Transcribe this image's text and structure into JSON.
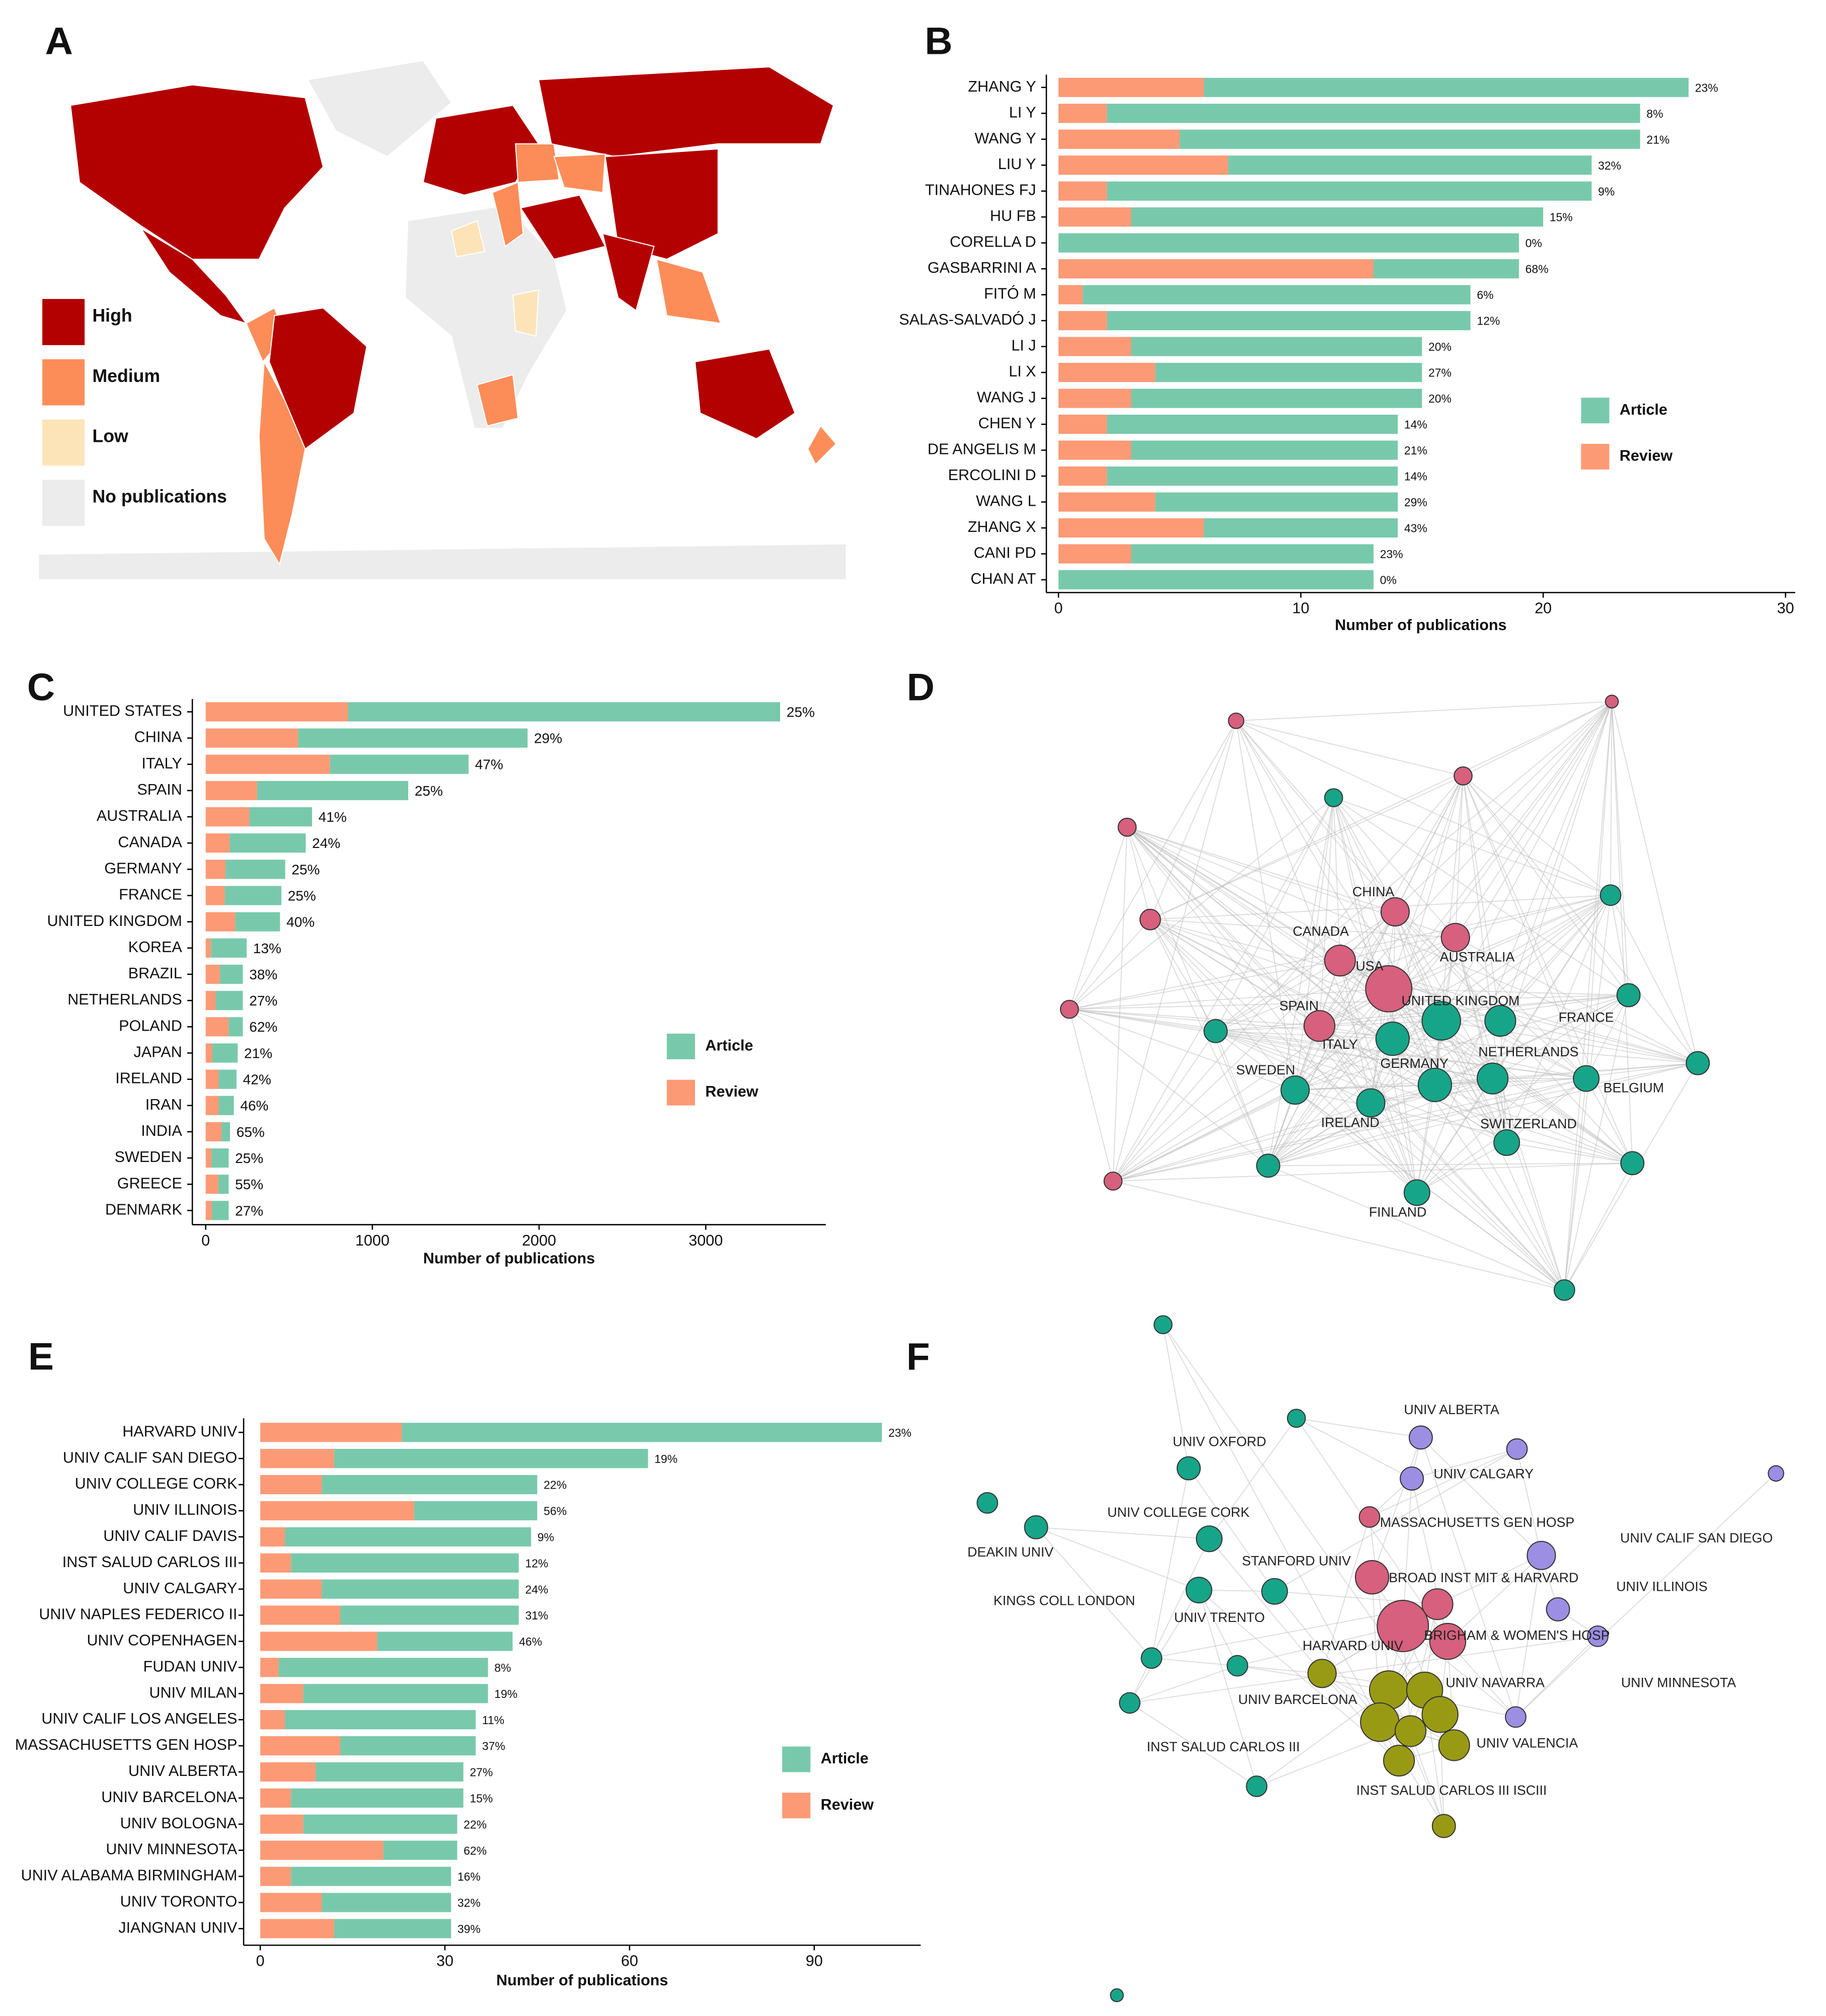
{
  "chart_data": [
    {
      "type": "map",
      "panel": "A",
      "legend": [
        {
          "label": "High",
          "color": "#b30000"
        },
        {
          "label": "Medium",
          "color": "#fc8d59"
        },
        {
          "label": "Low",
          "color": "#fde4b8"
        },
        {
          "label": "No publications",
          "color": "#ececec"
        }
      ]
    },
    {
      "type": "bar",
      "panel": "B",
      "x_label": "Number of publications",
      "categories": [
        "ZHANG Y",
        "LI Y",
        "WANG Y",
        "LIU Y",
        "TINAHONES FJ",
        "HU FB",
        "CORELLA D",
        "GASBARRINI A",
        "FITÓ M",
        "SALAS-SALVADÓ J",
        "LI J",
        "LI X",
        "WANG J",
        "CHEN Y",
        "DE ANGELIS M",
        "ERCOLINI D",
        "WANG L",
        "ZHANG X",
        "CANI PD",
        "CHAN AT"
      ],
      "series": [
        {
          "name": "Article",
          "color": "#78c9ab",
          "values": [
            20,
            22,
            19,
            15,
            20,
            17,
            19,
            6,
            16,
            15,
            12,
            11,
            12,
            12,
            11,
            12,
            10,
            8,
            10,
            13
          ]
        },
        {
          "name": "Review",
          "color": "#fc9a76",
          "values": [
            6,
            2,
            5,
            7,
            2,
            3,
            0,
            13,
            1,
            2,
            3,
            4,
            3,
            2,
            3,
            2,
            4,
            6,
            3,
            0
          ]
        }
      ],
      "review_share": {
        "values": [
          23,
          8,
          21,
          32,
          9,
          15,
          0,
          68,
          6,
          12,
          20,
          27,
          20,
          14,
          21,
          14,
          29,
          43,
          23,
          0
        ],
        "value_labels": [
          "23%",
          "8%",
          "21%",
          "32%",
          "9%",
          "15%",
          "0%",
          "68%",
          "6%",
          "12%",
          "20%",
          "27%",
          "20%",
          "14%",
          "21%",
          "14%",
          "29%",
          "43%",
          "23%",
          "0%"
        ]
      },
      "xlim": [
        -0.5,
        30.4
      ],
      "xticks": [
        0,
        10,
        20,
        30
      ]
    },
    {
      "type": "bar",
      "panel": "C",
      "x_label": "Number of publications",
      "categories": [
        "UNITED STATES",
        "CHINA",
        "ITALY",
        "SPAIN",
        "AUSTRALIA",
        "CANADA",
        "GERMANY",
        "FRANCE",
        "UNITED KINGDOM",
        "KOREA",
        "BRAZIL",
        "NETHERLANDS",
        "POLAND",
        "JAPAN",
        "IRELAND",
        "IRAN",
        "INDIA",
        "SWEDEN",
        "GREECE",
        "DENMARK"
      ],
      "series": [
        {
          "name": "Article",
          "color": "#78c9ab",
          "values": [
            2592,
            1377,
            831,
            907,
            376,
            456,
            358,
            340,
            268,
            214,
            138,
            163,
            85,
            152,
            107,
            91,
            51,
            103,
            62,
            101
          ]
        },
        {
          "name": "Review",
          "color": "#fc9a76",
          "values": [
            854,
            554,
            746,
            308,
            262,
            144,
            119,
            114,
            178,
            32,
            85,
            60,
            138,
            40,
            78,
            78,
            95,
            35,
            76,
            37
          ]
        }
      ],
      "review_share": {
        "values": [
          25,
          29,
          47,
          25,
          41,
          24,
          25,
          25,
          40,
          13,
          38,
          27,
          62,
          21,
          42,
          46,
          65,
          25,
          55,
          27
        ],
        "value_labels": [
          "25%",
          "29%",
          "47%",
          "25%",
          "41%",
          "24%",
          "25%",
          "25%",
          "40%",
          "13%",
          "38%",
          "27%",
          "62%",
          "21%",
          "42%",
          "46%",
          "65%",
          "25%",
          "55%",
          "27%"
        ]
      },
      "xlim": [
        -80,
        3720
      ],
      "xticks": [
        0,
        1000,
        2000,
        3000
      ]
    },
    {
      "type": "network",
      "panel": "D",
      "nodes": [
        {
          "label": "USA",
          "color": "#d6607d"
        },
        {
          "label": "CHINA",
          "color": "#d6607d"
        },
        {
          "label": "AUSTRALIA",
          "color": "#d6607d"
        },
        {
          "label": "CANADA",
          "color": "#d6607d"
        },
        {
          "label": "SPAIN",
          "color": "#d6607d"
        },
        {
          "color": "#d6607d"
        },
        {
          "color": "#d6607d"
        },
        {
          "color": "#d6607d"
        },
        {
          "color": "#d6607d"
        },
        {
          "color": "#d6607d"
        },
        {
          "color": "#d6607d"
        },
        {
          "color": "#d6607d"
        },
        {
          "label": "UNITED KINGDOM",
          "color": "#17a589"
        },
        {
          "label": "ITALY",
          "color": "#17a589"
        },
        {
          "label": "FRANCE",
          "color": "#17a589"
        },
        {
          "label": "GERMANY",
          "color": "#17a589"
        },
        {
          "label": "NETHERLANDS",
          "color": "#17a589"
        },
        {
          "label": "SWEDEN",
          "color": "#17a589"
        },
        {
          "label": "BELGIUM",
          "color": "#17a589"
        },
        {
          "label": "IRELAND",
          "color": "#17a589"
        },
        {
          "label": "SWITZERLAND",
          "color": "#17a589"
        },
        {
          "label": "FINLAND",
          "color": "#17a589"
        },
        {
          "color": "#17a589"
        },
        {
          "color": "#17a589"
        },
        {
          "color": "#17a589"
        },
        {
          "color": "#17a589"
        },
        {
          "color": "#17a589"
        },
        {
          "color": "#17a589"
        },
        {
          "color": "#17a589"
        },
        {
          "color": "#17a589"
        }
      ]
    },
    {
      "type": "bar",
      "panel": "E",
      "x_label": "Number of publications",
      "categories": [
        "HARVARD UNIV",
        "UNIV CALIF SAN DIEGO",
        "UNIV COLLEGE CORK",
        "UNIV ILLINOIS",
        "UNIV CALIF DAVIS",
        "INST SALUD CARLOS III",
        "UNIV CALGARY",
        "UNIV NAPLES FEDERICO II",
        "UNIV COPENHAGEN",
        "FUDAN UNIV",
        "UNIV MILAN",
        "UNIV CALIF LOS ANGELES",
        "MASSACHUSETTS GEN HOSP",
        "UNIV ALBERTA",
        "UNIV BARCELONA",
        "UNIV BOLOGNA",
        "UNIV MINNESOTA",
        "UNIV ALABAMA BIRMINGHAM",
        "UNIV TORONTO",
        "JIANGNAN UNIV"
      ],
      "series": [
        {
          "name": "Article",
          "color": "#78c9ab",
          "values": [
            78,
            51,
            35,
            20,
            40,
            37,
            32,
            29,
            22,
            34,
            30,
            31,
            22,
            24,
            28,
            25,
            12,
            26,
            21,
            19
          ]
        },
        {
          "name": "Review",
          "color": "#fc9a76",
          "values": [
            23,
            12,
            10,
            25,
            4,
            5,
            10,
            13,
            19,
            3,
            7,
            4,
            13,
            9,
            5,
            7,
            20,
            5,
            10,
            12
          ]
        }
      ],
      "review_share": {
        "values": [
          23,
          19,
          22,
          56,
          9,
          12,
          24,
          31,
          46,
          8,
          19,
          11,
          37,
          27,
          15,
          22,
          62,
          16,
          32,
          39
        ],
        "value_labels": [
          "23%",
          "19%",
          "22%",
          "56%",
          "9%",
          "12%",
          "24%",
          "31%",
          "46%",
          "8%",
          "19%",
          "11%",
          "37%",
          "27%",
          "15%",
          "22%",
          "62%",
          "16%",
          "32%",
          "39%"
        ]
      },
      "xlim": [
        -2.7,
        107.3
      ],
      "xticks": [
        0,
        30,
        60,
        90
      ]
    },
    {
      "type": "network",
      "panel": "F",
      "nodes": [
        {
          "label": "UNIV OXFORD",
          "color": "#17a589"
        },
        {
          "label": "DEAKIN UNIV",
          "color": "#17a589"
        },
        {
          "label": "UNIV COLLEGE CORK",
          "color": "#17a589"
        },
        {
          "label": "KINGS COLL LONDON",
          "color": "#17a589"
        },
        {
          "label": "UNIV TRENTO",
          "color": "#17a589"
        },
        {
          "label": "MASSACHUSETTS GEN HOSP",
          "color": "#d6607d"
        },
        {
          "label": "STANFORD UNIV",
          "color": "#d6607d"
        },
        {
          "label": "BROAD INST MIT & HARVARD",
          "color": "#d6607d"
        },
        {
          "label": "HARVARD UNIV",
          "color": "#d6607d"
        },
        {
          "label": "BRIGHAM & WOMEN'S HOSP",
          "color": "#d6607d"
        },
        {
          "label": "UNIV ALBERTA",
          "color": "#9c8fe3"
        },
        {
          "label": "UNIV CALGARY",
          "color": "#9c8fe3"
        },
        {
          "label": "UNIV CALIF SAN DIEGO",
          "color": "#9c8fe3"
        },
        {
          "label": "UNIV ILLINOIS",
          "color": "#9c8fe3"
        },
        {
          "label": "UNIV MINNESOTA",
          "color": "#9c8fe3"
        },
        {
          "label": "UNIV NAVARRA",
          "color": "#999a14"
        },
        {
          "label": "UNIV BARCELONA",
          "color": "#999a14"
        },
        {
          "label": "UNIV VALENCIA",
          "color": "#999a14"
        },
        {
          "label": "INST SALUD CARLOS III",
          "color": "#999a14"
        },
        {
          "label": "INST SALUD CARLOS III ISCIII",
          "color": "#999a14"
        },
        {
          "color": "#17a589"
        },
        {
          "color": "#17a589"
        },
        {
          "color": "#17a589"
        },
        {
          "color": "#17a589"
        },
        {
          "color": "#17a589"
        },
        {
          "color": "#17a589"
        },
        {
          "color": "#17a589"
        },
        {
          "color": "#17a589"
        },
        {
          "color": "#9c8fe3"
        },
        {
          "color": "#9c8fe3"
        },
        {
          "color": "#9c8fe3"
        },
        {
          "color": "#999a14"
        },
        {
          "color": "#999a14"
        },
        {
          "color": "#999a14"
        },
        {
          "color": "#999a14"
        }
      ]
    }
  ]
}
